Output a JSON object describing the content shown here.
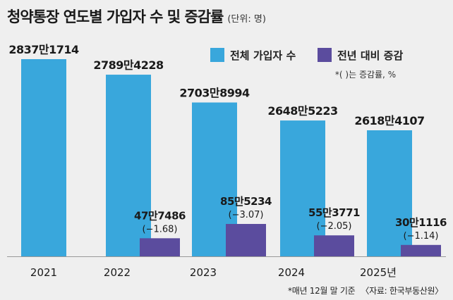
{
  "header": {
    "title": "청약통장 연도별 가입자 수 및 증감률",
    "unit": "(단위: 명)"
  },
  "legend": {
    "note": "*(    )는 증감률, %"
  },
  "footer": {
    "basis": "*매년 12월 말 기준",
    "source": "〈자료: 한국부동산원〉"
  },
  "colors": {
    "subscribers": "#39a7dc",
    "change": "#5b4c9e",
    "background": "#efefef"
  },
  "chart_data": {
    "type": "bar",
    "title": "청약통장 연도별 가입자 수 및 증감률",
    "categories": [
      "2021",
      "2022",
      "2023",
      "2024",
      "2025년"
    ],
    "series": [
      {
        "name": "전체 가입자 수",
        "values": [
          28371714,
          27894228,
          27038994,
          26485223,
          26184107
        ],
        "labels": [
          "2837만1714",
          "2789만4228",
          "2703만8994",
          "2648만5223",
          "2618만4107"
        ]
      },
      {
        "name": "전년 대비 증감",
        "values": [
          null,
          477486,
          855234,
          553771,
          301116
        ],
        "labels": [
          "",
          "47만7486",
          "85만5234",
          "55만3771",
          "30만1116"
        ],
        "rates": [
          "",
          "(−1.68)",
          "(−3.07)",
          "(−2.05)",
          "(−1.14)"
        ]
      }
    ],
    "xlabel": "",
    "ylabel": "",
    "grid": false,
    "legend_position": "top-right"
  }
}
